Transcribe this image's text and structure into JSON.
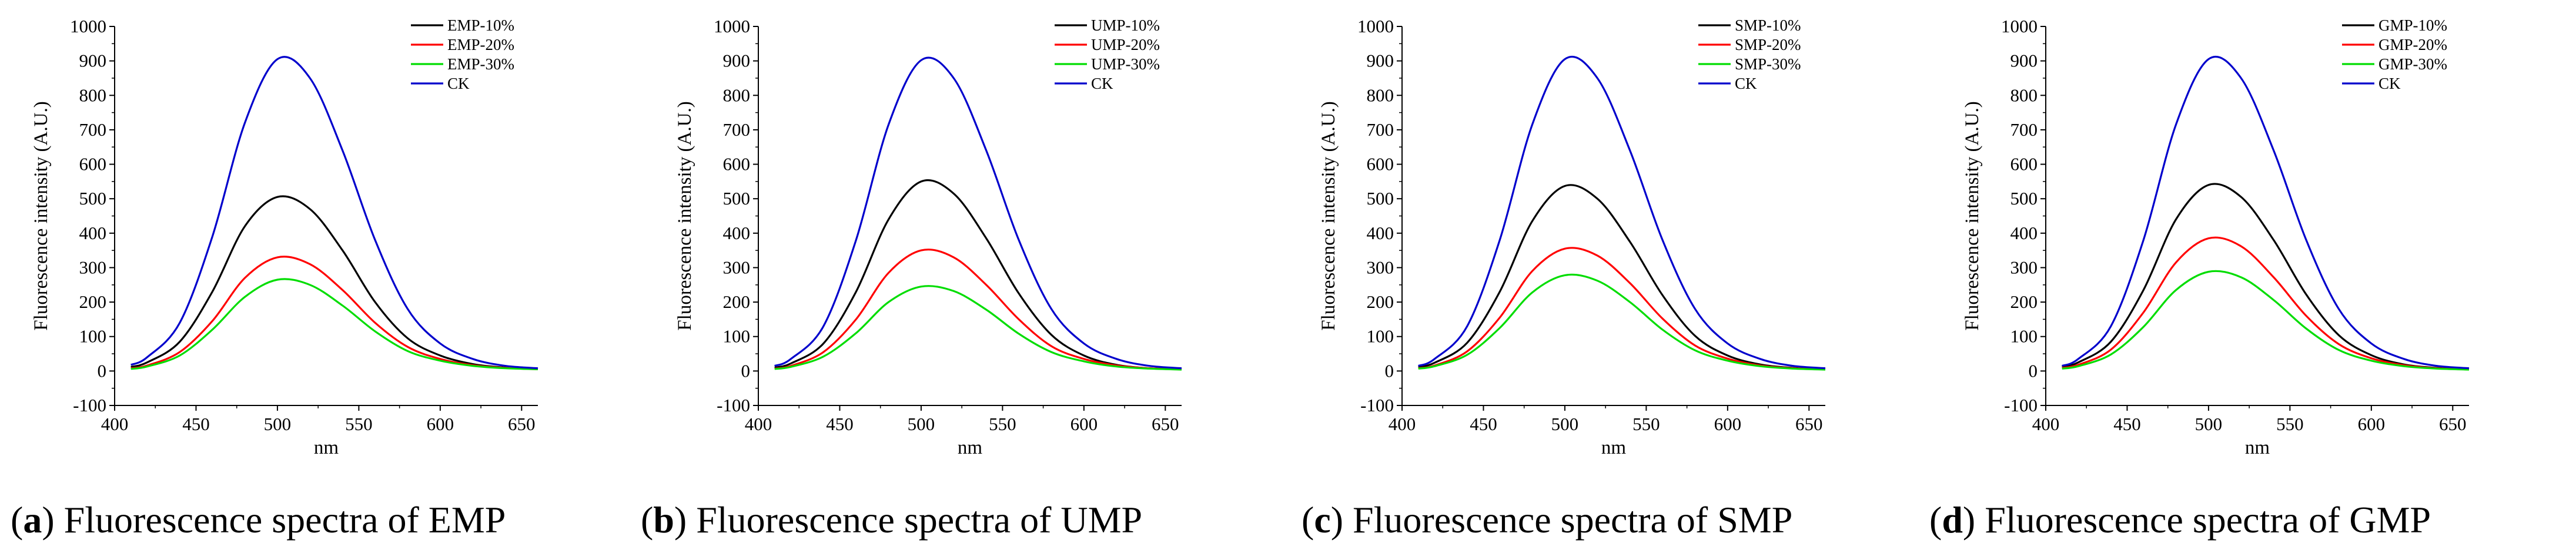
{
  "figure": {
    "panels": [
      {
        "caption": {
          "letter": "a",
          "text": "Fluorescence spectra of EMP"
        },
        "chart_data": {
          "type": "line",
          "xlabel": "nm",
          "ylabel": "Fluorescence intensity (A.U.)",
          "xlim": [
            400,
            660
          ],
          "ylim": [
            -100,
            1000
          ],
          "xticks": [
            400,
            450,
            500,
            550,
            600,
            650
          ],
          "yticks": [
            -100,
            0,
            100,
            200,
            300,
            400,
            500,
            600,
            700,
            800,
            900,
            1000
          ],
          "legend_position": "top-right",
          "series": [
            {
              "name": "EMP-10%",
              "color": "#000000",
              "x": [
                410,
                420,
                440,
                460,
                480,
                500,
                520,
                540,
                560,
                580,
                600,
                620,
                640,
                660
              ],
              "values": [
                12,
                25,
                85,
                230,
                420,
                505,
                470,
                350,
                200,
                95,
                45,
                20,
                10,
                6
              ]
            },
            {
              "name": "EMP-20%",
              "color": "#ff0000",
              "x": [
                410,
                420,
                440,
                460,
                480,
                500,
                520,
                540,
                560,
                580,
                600,
                620,
                640,
                660
              ],
              "values": [
                8,
                16,
                55,
                145,
                270,
                330,
                310,
                235,
                140,
                70,
                35,
                17,
                9,
                5
              ]
            },
            {
              "name": "EMP-30%",
              "color": "#00dd00",
              "x": [
                410,
                420,
                440,
                460,
                480,
                500,
                520,
                540,
                560,
                580,
                600,
                620,
                640,
                660
              ],
              "values": [
                6,
                13,
                45,
                120,
                215,
                265,
                250,
                190,
                115,
                58,
                30,
                15,
                8,
                5
              ]
            },
            {
              "name": "CK",
              "color": "#0000cc",
              "x": [
                410,
                420,
                440,
                460,
                480,
                500,
                520,
                540,
                560,
                580,
                600,
                620,
                640,
                660
              ],
              "values": [
                18,
                40,
                140,
                390,
                720,
                905,
                850,
                640,
                380,
                180,
                80,
                35,
                15,
                8
              ]
            }
          ]
        }
      },
      {
        "caption": {
          "letter": "b",
          "text": "Fluorescence spectra of UMP"
        },
        "chart_data": {
          "type": "line",
          "xlabel": "nm",
          "ylabel": "Fluorescence intensity (A.U.)",
          "xlim": [
            400,
            660
          ],
          "ylim": [
            -100,
            1000
          ],
          "xticks": [
            400,
            450,
            500,
            550,
            600,
            650
          ],
          "yticks": [
            -100,
            0,
            100,
            200,
            300,
            400,
            500,
            600,
            700,
            800,
            900,
            1000
          ],
          "legend_position": "top-right",
          "series": [
            {
              "name": "UMP-10%",
              "color": "#000000",
              "x": [
                410,
                420,
                440,
                460,
                480,
                500,
                520,
                540,
                560,
                580,
                600,
                620,
                640,
                660
              ],
              "values": [
                10,
                22,
                80,
                230,
                440,
                550,
                515,
                385,
                225,
                105,
                45,
                18,
                8,
                5
              ]
            },
            {
              "name": "UMP-20%",
              "color": "#ff0000",
              "x": [
                410,
                420,
                440,
                460,
                480,
                500,
                520,
                540,
                560,
                580,
                600,
                620,
                640,
                660
              ],
              "values": [
                7,
                15,
                55,
                150,
                285,
                350,
                330,
                250,
                150,
                72,
                35,
                16,
                8,
                5
              ]
            },
            {
              "name": "UMP-30%",
              "color": "#00dd00",
              "x": [
                410,
                420,
                440,
                460,
                480,
                500,
                520,
                540,
                560,
                580,
                600,
                620,
                640,
                660
              ],
              "values": [
                6,
                12,
                42,
                110,
                200,
                245,
                232,
                178,
                108,
                55,
                28,
                13,
                7,
                4
              ]
            },
            {
              "name": "CK",
              "color": "#0000cc",
              "x": [
                410,
                420,
                440,
                460,
                480,
                500,
                520,
                540,
                560,
                580,
                600,
                620,
                640,
                660
              ],
              "values": [
                15,
                35,
                130,
                380,
                715,
                902,
                850,
                640,
                380,
                180,
                80,
                35,
                15,
                8
              ]
            }
          ]
        }
      },
      {
        "caption": {
          "letter": "c",
          "text": "Fluorescence spectra of SMP"
        },
        "chart_data": {
          "type": "line",
          "xlabel": "nm",
          "ylabel": "Fluorescence intensity (A.U.)",
          "xlim": [
            400,
            660
          ],
          "ylim": [
            -100,
            1000
          ],
          "xticks": [
            400,
            450,
            500,
            550,
            600,
            650
          ],
          "yticks": [
            -100,
            0,
            100,
            200,
            300,
            400,
            500,
            600,
            700,
            800,
            900,
            1000
          ],
          "legend_position": "top-right",
          "series": [
            {
              "name": "SMP-10%",
              "color": "#000000",
              "x": [
                410,
                420,
                440,
                460,
                480,
                500,
                520,
                540,
                560,
                580,
                600,
                620,
                640,
                660
              ],
              "values": [
                11,
                24,
                82,
                230,
                435,
                537,
                500,
                375,
                220,
                102,
                45,
                19,
                9,
                5
              ]
            },
            {
              "name": "SMP-20%",
              "color": "#ff0000",
              "x": [
                410,
                420,
                440,
                460,
                480,
                500,
                520,
                540,
                560,
                580,
                600,
                620,
                640,
                660
              ],
              "values": [
                8,
                16,
                57,
                155,
                290,
                355,
                335,
                255,
                152,
                74,
                36,
                16,
                8,
                5
              ]
            },
            {
              "name": "SMP-30%",
              "color": "#00dd00",
              "x": [
                410,
                420,
                440,
                460,
                480,
                500,
                520,
                540,
                560,
                580,
                600,
                620,
                640,
                660
              ],
              "values": [
                7,
                14,
                47,
                125,
                228,
                278,
                262,
                200,
                120,
                60,
                30,
                14,
                7,
                4
              ]
            },
            {
              "name": "CK",
              "color": "#0000cc",
              "x": [
                410,
                420,
                440,
                460,
                480,
                500,
                520,
                540,
                560,
                580,
                600,
                620,
                640,
                660
              ],
              "values": [
                15,
                35,
                130,
                380,
                715,
                905,
                850,
                640,
                380,
                180,
                80,
                35,
                15,
                8
              ]
            }
          ]
        }
      },
      {
        "caption": {
          "letter": "d",
          "text": "Fluorescence spectra of GMP"
        },
        "chart_data": {
          "type": "line",
          "xlabel": "nm",
          "ylabel": "Fluorescence intensity (A.U.)",
          "xlim": [
            400,
            660
          ],
          "ylim": [
            -100,
            1000
          ],
          "xticks": [
            400,
            450,
            500,
            550,
            600,
            650
          ],
          "yticks": [
            -100,
            0,
            100,
            200,
            300,
            400,
            500,
            600,
            700,
            800,
            900,
            1000
          ],
          "legend_position": "top-right",
          "series": [
            {
              "name": "GMP-10%",
              "color": "#000000",
              "x": [
                410,
                420,
                440,
                460,
                480,
                500,
                520,
                540,
                560,
                580,
                600,
                620,
                640,
                660
              ],
              "values": [
                12,
                25,
                85,
                235,
                440,
                540,
                505,
                380,
                222,
                104,
                46,
                19,
                9,
                5
              ]
            },
            {
              "name": "GMP-20%",
              "color": "#ff0000",
              "x": [
                410,
                420,
                440,
                460,
                480,
                500,
                520,
                540,
                560,
                580,
                600,
                620,
                640,
                660
              ],
              "values": [
                9,
                18,
                62,
                170,
                315,
                385,
                362,
                272,
                160,
                78,
                37,
                17,
                8,
                5
              ]
            },
            {
              "name": "GMP-30%",
              "color": "#00dd00",
              "x": [
                410,
                420,
                440,
                460,
                480,
                500,
                520,
                540,
                560,
                580,
                600,
                620,
                640,
                660
              ],
              "values": [
                7,
                14,
                48,
                128,
                235,
                288,
                272,
                206,
                123,
                61,
                30,
                14,
                7,
                4
              ]
            },
            {
              "name": "CK",
              "color": "#0000cc",
              "x": [
                410,
                420,
                440,
                460,
                480,
                500,
                520,
                540,
                560,
                580,
                600,
                620,
                640,
                660
              ],
              "values": [
                15,
                35,
                130,
                380,
                715,
                905,
                850,
                640,
                380,
                180,
                80,
                35,
                15,
                8
              ]
            }
          ]
        }
      }
    ]
  }
}
